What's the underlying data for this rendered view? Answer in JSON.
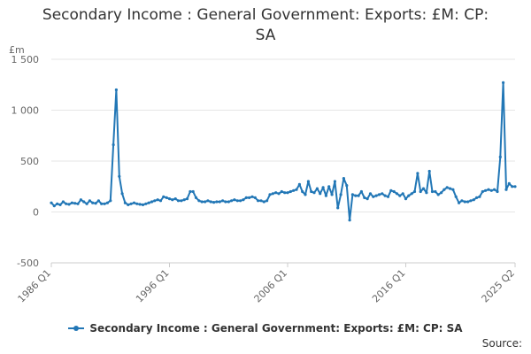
{
  "title_line1": "Secondary Income : General Government: Exports: £M: CP:",
  "title_line2": "SA",
  "source_label": "Source:",
  "chart_data": {
    "type": "line",
    "unit_label": "£m",
    "xlabel": "",
    "ylabel": "",
    "ylim": [
      -500,
      1500
    ],
    "yticks": [
      -500,
      0,
      500,
      1000,
      1500
    ],
    "ytick_labels": [
      "-500",
      "0",
      "500",
      "1 000",
      "1 500"
    ],
    "grid": true,
    "legend_position": "bottom",
    "series_color": "#2277b6",
    "xticks": [
      {
        "label": "1986 Q1",
        "index": 0
      },
      {
        "label": "1996 Q1",
        "index": 40
      },
      {
        "label": "2006 Q1",
        "index": 80
      },
      {
        "label": "2016 Q1",
        "index": 120
      },
      {
        "label": "2025 Q2",
        "index": 157
      }
    ],
    "series": [
      {
        "name": "Secondary Income : General Government: Exports: £M: CP: SA",
        "start": "1986 Q1",
        "frequency": "quarterly",
        "values": [
          90,
          60,
          80,
          70,
          100,
          80,
          75,
          90,
          85,
          80,
          120,
          100,
          80,
          110,
          90,
          85,
          110,
          80,
          80,
          90,
          110,
          660,
          1200,
          350,
          180,
          90,
          70,
          80,
          90,
          80,
          75,
          70,
          80,
          90,
          100,
          110,
          120,
          110,
          150,
          140,
          130,
          120,
          130,
          110,
          110,
          120,
          130,
          200,
          200,
          140,
          110,
          100,
          100,
          110,
          100,
          95,
          100,
          100,
          110,
          100,
          100,
          110,
          120,
          110,
          110,
          120,
          140,
          140,
          150,
          140,
          110,
          110,
          100,
          110,
          170,
          180,
          190,
          180,
          200,
          190,
          190,
          200,
          210,
          220,
          270,
          200,
          170,
          300,
          200,
          190,
          230,
          180,
          240,
          160,
          250,
          170,
          300,
          40,
          170,
          330,
          260,
          -80,
          170,
          160,
          160,
          200,
          140,
          130,
          180,
          150,
          160,
          170,
          180,
          160,
          150,
          210,
          200,
          180,
          160,
          180,
          130,
          160,
          180,
          200,
          380,
          200,
          230,
          190,
          400,
          200,
          200,
          170,
          190,
          220,
          240,
          230,
          220,
          150,
          90,
          110,
          100,
          100,
          110,
          120,
          140,
          150,
          200,
          210,
          220,
          210,
          220,
          200,
          540,
          1270,
          220,
          280,
          250,
          250
        ]
      }
    ]
  }
}
